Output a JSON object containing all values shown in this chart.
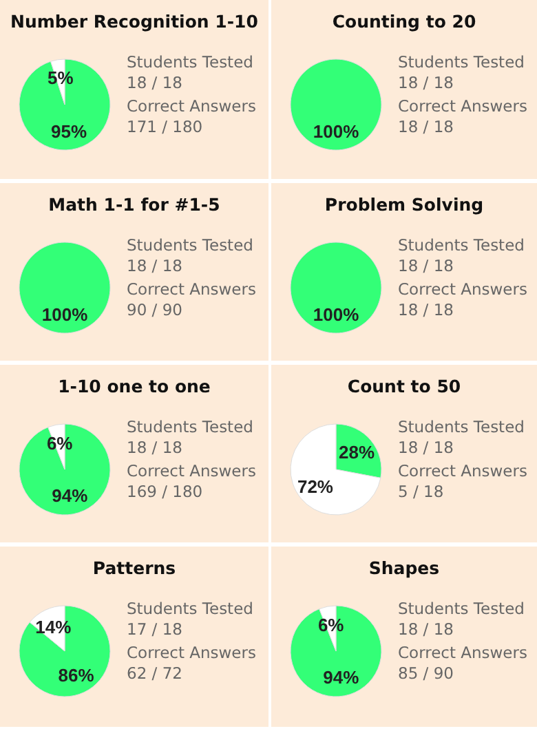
{
  "chart_data": [
    {
      "type": "pie",
      "title": "Number Recognition 1-10",
      "categories": [
        null,
        null
      ],
      "values": [
        95,
        5
      ],
      "colors": [
        "#33ff77",
        "#ffffff"
      ],
      "value_labels": [
        "95%",
        "5%"
      ],
      "annotations": [
        "Students Tested",
        "18 / 18",
        "Correct Answers",
        "171 / 180"
      ]
    },
    {
      "type": "pie",
      "title": "Counting to 20",
      "categories": [
        null
      ],
      "values": [
        100
      ],
      "colors": [
        "#33ff77"
      ],
      "value_labels": [
        "100%"
      ],
      "annotations": [
        "Students Tested",
        "18 / 18",
        "Correct Answers",
        "18 / 18"
      ]
    },
    {
      "type": "pie",
      "title": "Math 1-1 for #1-5",
      "categories": [
        null
      ],
      "values": [
        100
      ],
      "colors": [
        "#33ff77"
      ],
      "value_labels": [
        "100%"
      ],
      "annotations": [
        "Students Tested",
        "18 / 18",
        "Correct Answers",
        "90 / 90"
      ]
    },
    {
      "type": "pie",
      "title": "Problem Solving",
      "categories": [
        null
      ],
      "values": [
        100
      ],
      "colors": [
        "#33ff77"
      ],
      "value_labels": [
        "100%"
      ],
      "annotations": [
        "Students Tested",
        "18 / 18",
        "Correct Answers",
        "18 / 18"
      ]
    },
    {
      "type": "pie",
      "title": "1-10 one to one",
      "categories": [
        null,
        null
      ],
      "values": [
        94,
        6
      ],
      "colors": [
        "#33ff77",
        "#ffffff"
      ],
      "value_labels": [
        "94%",
        "6%"
      ],
      "annotations": [
        "Students Tested",
        "18 / 18",
        "Correct Answers",
        "169 / 180"
      ]
    },
    {
      "type": "pie",
      "title": "Count to 50",
      "categories": [
        null,
        null
      ],
      "values": [
        28,
        72
      ],
      "colors": [
        "#33ff77",
        "#ffffff"
      ],
      "value_labels": [
        "28%",
        "72%"
      ],
      "annotations": [
        "Students Tested",
        "18 / 18",
        "Correct Answers",
        "5 / 18"
      ]
    },
    {
      "type": "pie",
      "title": "Patterns",
      "categories": [
        null,
        null
      ],
      "values": [
        86,
        14
      ],
      "colors": [
        "#33ff77",
        "#ffffff"
      ],
      "value_labels": [
        "86%",
        "14%"
      ],
      "annotations": [
        "Students Tested",
        "17 / 18",
        "Correct Answers",
        "62 / 72"
      ]
    },
    {
      "type": "pie",
      "title": "Shapes",
      "categories": [
        null,
        null
      ],
      "values": [
        94,
        6
      ],
      "colors": [
        "#33ff77",
        "#ffffff"
      ],
      "value_labels": [
        "94%",
        "6%"
      ],
      "annotations": [
        "Students Tested",
        "18 / 18",
        "Correct Answers",
        "85 / 90"
      ]
    }
  ]
}
